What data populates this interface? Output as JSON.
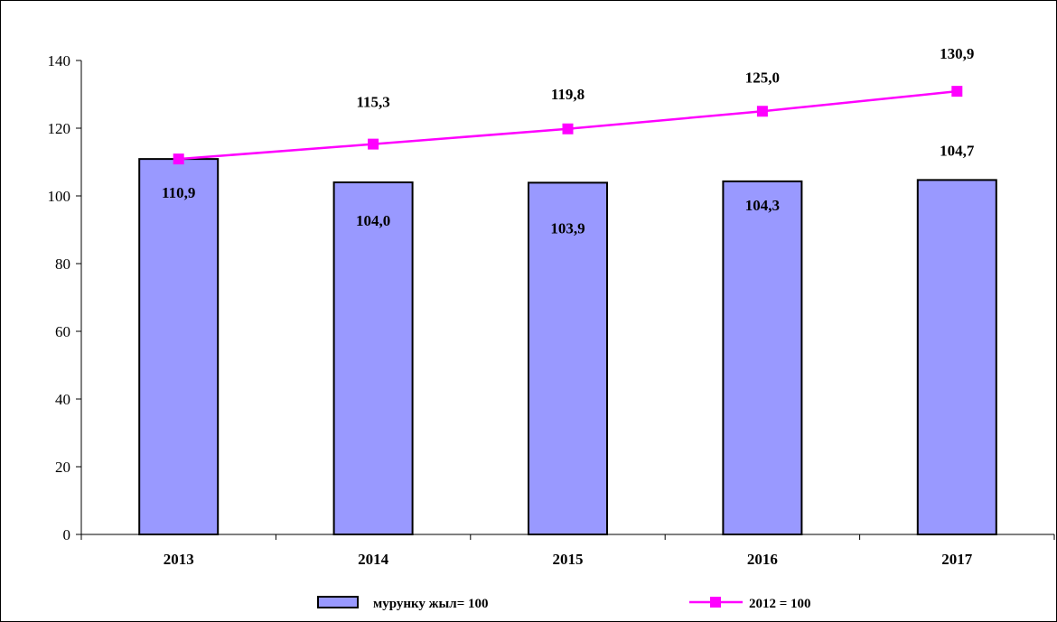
{
  "chart_data": {
    "type": "bar",
    "categories": [
      "2013",
      "2014",
      "2015",
      "2016",
      "2017"
    ],
    "ylim": [
      0,
      140
    ],
    "yticks": [
      "0",
      "20",
      "40",
      "60",
      "80",
      "100",
      "120",
      "140"
    ],
    "grid": false,
    "legend_position": "bottom",
    "series": [
      {
        "name": "мурунку жыл= 100",
        "type": "bar",
        "values": [
          110.9,
          104.0,
          103.9,
          104.3,
          104.7
        ],
        "labels": [
          "110,9",
          "104,0",
          "103,9",
          "104,3",
          "104,7"
        ],
        "color": "#9999FF"
      },
      {
        "name": "2012 = 100",
        "type": "line",
        "values": [
          110.9,
          115.3,
          119.8,
          125.0,
          130.9
        ],
        "labels": [
          "",
          "115,3",
          "119,8",
          "125,0",
          "130,9"
        ],
        "color": "#FF00FF"
      }
    ]
  }
}
